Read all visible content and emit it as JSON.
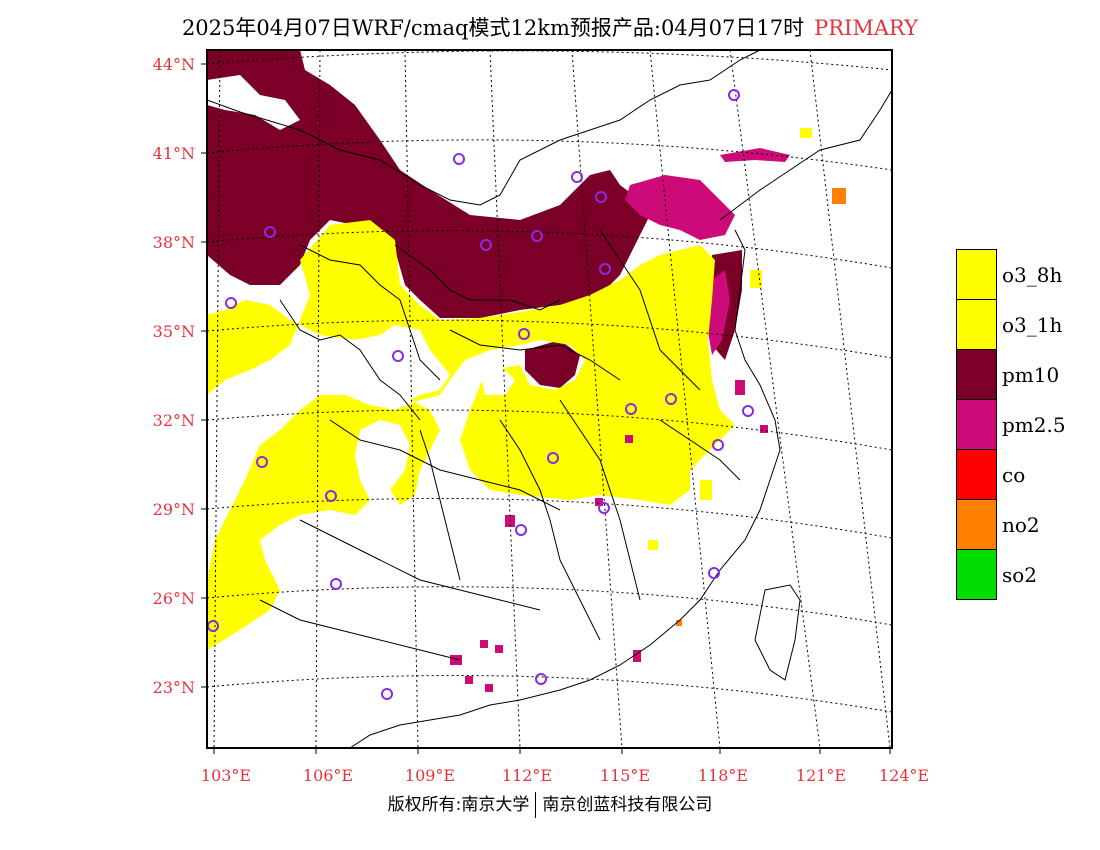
{
  "title": {
    "main": "2025年04月07日WRF/cmaq模式12km预报产品:04月07日17时",
    "tag": "PRIMARY"
  },
  "colors": {
    "label_red": "#e8323a",
    "o3_8h": "#ffff00",
    "o3_1h": "#ffff00",
    "pm10": "#7a0028",
    "pm25": "#cc0a78",
    "co": "#ff0000",
    "no2": "#ff7f00",
    "so2": "#00dd00",
    "station": "#8a2be2"
  },
  "axes": {
    "latitudes": [
      "44°N",
      "41°N",
      "38°N",
      "35°N",
      "32°N",
      "29°N",
      "26°N",
      "23°N"
    ],
    "longitudes": [
      "103°E",
      "106°E",
      "109°E",
      "112°E",
      "115°E",
      "118°E",
      "121°E",
      "124°E"
    ]
  },
  "legend": {
    "items": [
      {
        "label": "o3_8h",
        "color": "#ffff00"
      },
      {
        "label": "o3_1h",
        "color": "#ffff00"
      },
      {
        "label": "pm10",
        "color": "#7a0028"
      },
      {
        "label": "pm2.5",
        "color": "#cc0a78"
      },
      {
        "label": "co",
        "color": "#ff0000"
      },
      {
        "label": "no2",
        "color": "#ff7f00"
      },
      {
        "label": "so2",
        "color": "#00dd00"
      }
    ]
  },
  "footer": {
    "left": "版权所有:南京大学",
    "right": "南京创蓝科技有限公司"
  }
}
